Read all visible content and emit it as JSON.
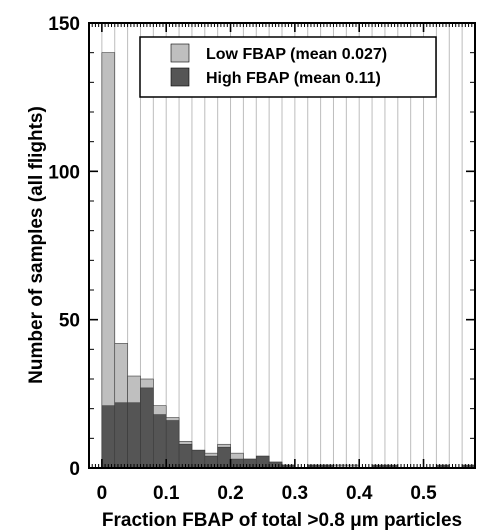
{
  "chart_data": {
    "type": "bar",
    "stacked": false,
    "bin_width": 0.02,
    "bin_starts": [
      0.0,
      0.02,
      0.04,
      0.06,
      0.08,
      0.1,
      0.12,
      0.14,
      0.16,
      0.18,
      0.2,
      0.22,
      0.24,
      0.26,
      0.28,
      0.3,
      0.32,
      0.34,
      0.36,
      0.38,
      0.4,
      0.42,
      0.44,
      0.46,
      0.48,
      0.5,
      0.52,
      0.54,
      0.56
    ],
    "series": [
      {
        "name": "Low FBAP (mean 0.027)",
        "color": "#bfbfbf",
        "values": [
          140,
          42,
          31,
          30,
          21,
          17,
          9,
          6,
          5,
          8,
          5,
          3,
          4,
          2,
          1,
          0,
          1,
          1,
          1,
          1,
          0,
          0,
          0,
          0,
          0,
          0,
          0,
          0,
          0
        ]
      },
      {
        "name": "High FBAP (mean 0.11)",
        "color": "#555555",
        "values": [
          21,
          22,
          22,
          27,
          18,
          16,
          8,
          6,
          4,
          7,
          3,
          3,
          4,
          2,
          1,
          0,
          1,
          1,
          0,
          0,
          0,
          1,
          1,
          0,
          0,
          0,
          1,
          0,
          1
        ]
      }
    ],
    "xlabel": "Fraction FBAP of  total >0.8 μm particles",
    "ylabel": "Number of samples (all flights)",
    "xlim": [
      -0.02,
      0.58
    ],
    "ylim": [
      0,
      150
    ],
    "x_ticks": [
      "0",
      "0.1",
      "0.2",
      "0.3",
      "0.4",
      "0.5"
    ],
    "y_ticks": [
      "0",
      "50",
      "100",
      "150"
    ],
    "grid": "vertical",
    "legend_position": "top-right"
  }
}
